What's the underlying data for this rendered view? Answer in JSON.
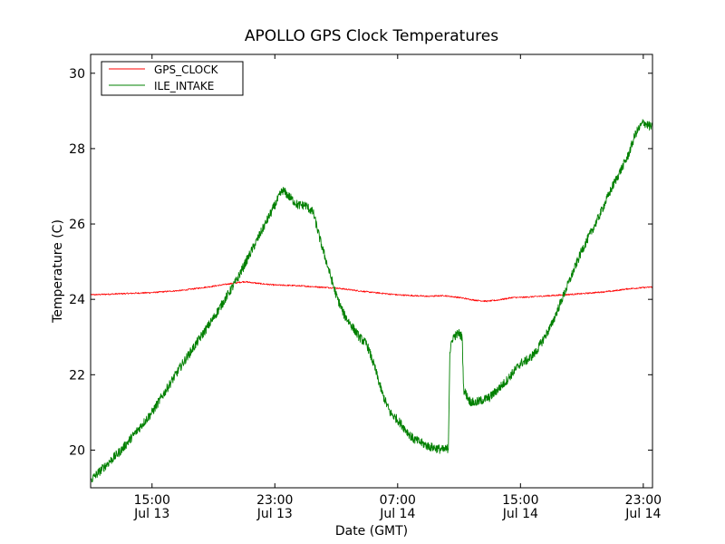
{
  "chart_data": {
    "type": "line",
    "title": "APOLLO GPS Clock Temperatures",
    "xlabel": "Date (GMT)",
    "ylabel": "Temperature (C)",
    "x_unit": "hours from Jul 13 11:00 GMT",
    "xlim": [
      0,
      36.6
    ],
    "ylim": [
      19,
      30.5
    ],
    "grid": false,
    "legend_position": "top-left",
    "x_ticks": [
      {
        "x": 4,
        "time": "15:00",
        "date": "Jul 13"
      },
      {
        "x": 12,
        "time": "23:00",
        "date": "Jul 13"
      },
      {
        "x": 20,
        "time": "07:00",
        "date": "Jul 14"
      },
      {
        "x": 28,
        "time": "15:00",
        "date": "Jul 14"
      },
      {
        "x": 36,
        "time": "23:00",
        "date": "Jul 14"
      }
    ],
    "y_ticks": [
      20,
      22,
      24,
      26,
      28,
      30
    ],
    "series": [
      {
        "name": "GPS_CLOCK",
        "color": "#ff0000",
        "points": [
          [
            0,
            24.12
          ],
          [
            2,
            24.15
          ],
          [
            4,
            24.18
          ],
          [
            6,
            24.24
          ],
          [
            8,
            24.35
          ],
          [
            10,
            24.47
          ],
          [
            11,
            24.42
          ],
          [
            12,
            24.38
          ],
          [
            13,
            24.37
          ],
          [
            14,
            24.35
          ],
          [
            16,
            24.3
          ],
          [
            18,
            24.2
          ],
          [
            20,
            24.12
          ],
          [
            22,
            24.08
          ],
          [
            23,
            24.1
          ],
          [
            24,
            24.05
          ],
          [
            25,
            23.98
          ],
          [
            25.8,
            23.95
          ],
          [
            26.5,
            23.98
          ],
          [
            27.5,
            24.05
          ],
          [
            28,
            24.05
          ],
          [
            30,
            24.1
          ],
          [
            32,
            24.15
          ],
          [
            34,
            24.22
          ],
          [
            35,
            24.28
          ],
          [
            36.6,
            24.33
          ]
        ]
      },
      {
        "name": "ILE_INTAKE",
        "color": "#008000",
        "points": [
          [
            0,
            19.2
          ],
          [
            2,
            20.0
          ],
          [
            4,
            21.0
          ],
          [
            6,
            22.3
          ],
          [
            8,
            23.5
          ],
          [
            9.5,
            24.5
          ],
          [
            11,
            25.7
          ],
          [
            12,
            26.5
          ],
          [
            12.5,
            26.9
          ],
          [
            13,
            26.7
          ],
          [
            13.5,
            26.5
          ],
          [
            14,
            26.5
          ],
          [
            14.5,
            26.3
          ],
          [
            15,
            25.5
          ],
          [
            15.5,
            24.8
          ],
          [
            16,
            24.1
          ],
          [
            16.5,
            23.6
          ],
          [
            17,
            23.3
          ],
          [
            17.5,
            23.0
          ],
          [
            18,
            22.8
          ],
          [
            18.5,
            22.2
          ],
          [
            19,
            21.5
          ],
          [
            19.5,
            21.0
          ],
          [
            20,
            20.8
          ],
          [
            21,
            20.3
          ],
          [
            22,
            20.1
          ],
          [
            23,
            20.0
          ],
          [
            23.3,
            20.05
          ],
          [
            23.4,
            22.6
          ],
          [
            23.6,
            23.0
          ],
          [
            24,
            23.1
          ],
          [
            24.2,
            23.0
          ],
          [
            24.3,
            21.6
          ],
          [
            24.7,
            21.3
          ],
          [
            25,
            21.25
          ],
          [
            26,
            21.4
          ],
          [
            27,
            21.8
          ],
          [
            28,
            22.3
          ],
          [
            28.5,
            22.4
          ],
          [
            29,
            22.6
          ],
          [
            30,
            23.3
          ],
          [
            31,
            24.3
          ],
          [
            32,
            25.3
          ],
          [
            33,
            26.1
          ],
          [
            34,
            27.0
          ],
          [
            35,
            27.8
          ],
          [
            35.5,
            28.4
          ],
          [
            36,
            28.7
          ],
          [
            36.6,
            28.55
          ]
        ]
      }
    ]
  }
}
